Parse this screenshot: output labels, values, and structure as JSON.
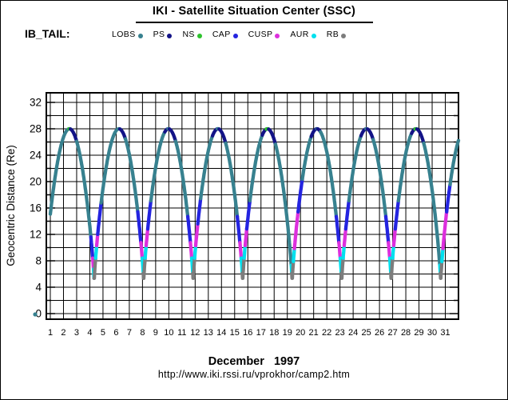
{
  "window": {
    "bg_color": "#ffffff",
    "border_color": "#000000"
  },
  "header": {
    "title": "IKI - Satellite Situation Center (SSC)"
  },
  "legend": {
    "group_label": "IB_TAIL:",
    "items": [
      {
        "label": "LOBS",
        "color": "#37818f"
      },
      {
        "label": "PS",
        "color": "#131387"
      },
      {
        "label": "NS",
        "color": "#2dc32d"
      },
      {
        "label": "CAP",
        "color": "#2424e0"
      },
      {
        "label": "CUSP",
        "color": "#dd2fdd"
      },
      {
        "label": "AUR",
        "color": "#00e0ee"
      },
      {
        "label": "RB",
        "color": "#7d7d7d"
      }
    ]
  },
  "footer": {
    "caption": "December   1997",
    "url": "http://www.iki.rssi.ru/vprokhor/camp2.htm"
  },
  "chart_data": {
    "type": "line",
    "ylabel": "Geocentric Distance (Re)",
    "xlabel": "December 1997 (day of month)",
    "y_ticks": [
      0,
      4,
      8,
      12,
      16,
      20,
      24,
      28,
      32
    ],
    "y_minor_step": 2,
    "x_ticks": [
      1,
      2,
      3,
      4,
      5,
      6,
      7,
      8,
      9,
      10,
      11,
      12,
      13,
      14,
      15,
      16,
      17,
      18,
      19,
      20,
      21,
      22,
      23,
      24,
      25,
      26,
      27,
      28,
      29,
      30,
      31
    ],
    "ylim": [
      0,
      32
    ],
    "xlim_days": [
      1,
      32
    ],
    "grid": "on",
    "orbit_model": {
      "apogee_re": 28,
      "perigee_re": 4.8,
      "period_days": 3.76,
      "first_apogee_day": 2.45,
      "shape_exponent": 0.78,
      "day_start": 1.0,
      "day_end": 32.0
    },
    "apogee_days": [
      2.45,
      6.21,
      9.97,
      13.73,
      17.49,
      21.25,
      25.01,
      28.77
    ],
    "perigee_days": [
      4.33,
      8.09,
      11.85,
      15.61,
      19.37,
      23.13,
      26.89,
      30.65
    ],
    "default_region": "LOBS",
    "color_segments": [
      {
        "from": 2.42,
        "to": 2.52,
        "region": "NS"
      },
      {
        "from": 17.38,
        "to": 17.56,
        "region": "NS"
      },
      {
        "from": 28.68,
        "to": 28.82,
        "region": "NS"
      },
      {
        "from": 2.52,
        "to": 3.0,
        "region": "PS"
      },
      {
        "from": 6.26,
        "to": 6.68,
        "region": "PS"
      },
      {
        "from": 9.68,
        "to": 9.93,
        "region": "PS"
      },
      {
        "from": 10.02,
        "to": 10.5,
        "region": "PS"
      },
      {
        "from": 13.3,
        "to": 13.68,
        "region": "PS"
      },
      {
        "from": 13.8,
        "to": 14.3,
        "region": "PS"
      },
      {
        "from": 17.08,
        "to": 17.38,
        "region": "PS"
      },
      {
        "from": 17.56,
        "to": 18.08,
        "region": "PS"
      },
      {
        "from": 20.8,
        "to": 21.22,
        "region": "PS"
      },
      {
        "from": 21.29,
        "to": 21.5,
        "region": "PS"
      },
      {
        "from": 24.58,
        "to": 24.96,
        "region": "PS"
      },
      {
        "from": 25.06,
        "to": 25.5,
        "region": "PS"
      },
      {
        "from": 28.42,
        "to": 28.68,
        "region": "PS"
      },
      {
        "from": 28.82,
        "to": 29.35,
        "region": "PS"
      },
      {
        "from": 4.08,
        "to": 4.2,
        "region": "CAP"
      },
      {
        "from": 4.2,
        "to": 4.26,
        "region": "CUSP"
      },
      {
        "from": 4.26,
        "to": 4.3,
        "region": "AUR"
      },
      {
        "from": 4.3,
        "to": 4.42,
        "region": "RB"
      },
      {
        "from": 4.42,
        "to": 4.5,
        "region": "AUR"
      },
      {
        "from": 4.5,
        "to": 4.58,
        "region": "CUSP"
      },
      {
        "from": 4.58,
        "to": 4.85,
        "region": "CAP"
      },
      {
        "from": 7.62,
        "to": 7.87,
        "region": "CAP"
      },
      {
        "from": 7.87,
        "to": 7.96,
        "region": "CUSP"
      },
      {
        "from": 7.96,
        "to": 8.04,
        "region": "AUR"
      },
      {
        "from": 8.04,
        "to": 8.18,
        "region": "RB"
      },
      {
        "from": 8.18,
        "to": 8.26,
        "region": "AUR"
      },
      {
        "from": 8.26,
        "to": 8.38,
        "region": "CUSP"
      },
      {
        "from": 8.38,
        "to": 8.62,
        "region": "CAP"
      },
      {
        "from": 11.42,
        "to": 11.63,
        "region": "CAP"
      },
      {
        "from": 11.63,
        "to": 11.72,
        "region": "CUSP"
      },
      {
        "from": 11.72,
        "to": 11.8,
        "region": "AUR"
      },
      {
        "from": 11.8,
        "to": 11.94,
        "region": "RB"
      },
      {
        "from": 11.94,
        "to": 12.02,
        "region": "AUR"
      },
      {
        "from": 12.02,
        "to": 12.18,
        "region": "CUSP"
      },
      {
        "from": 12.18,
        "to": 12.4,
        "region": "CAP"
      },
      {
        "from": 15.18,
        "to": 15.39,
        "region": "CAP"
      },
      {
        "from": 15.39,
        "to": 15.48,
        "region": "CUSP"
      },
      {
        "from": 15.48,
        "to": 15.56,
        "region": "AUR"
      },
      {
        "from": 15.56,
        "to": 15.7,
        "region": "RB"
      },
      {
        "from": 15.7,
        "to": 15.78,
        "region": "AUR"
      },
      {
        "from": 15.78,
        "to": 15.9,
        "region": "CUSP"
      },
      {
        "from": 15.9,
        "to": 16.14,
        "region": "CAP"
      },
      {
        "from": 19.28,
        "to": 19.33,
        "region": "AUR"
      },
      {
        "from": 19.33,
        "to": 19.45,
        "region": "RB"
      },
      {
        "from": 19.45,
        "to": 19.53,
        "region": "AUR"
      },
      {
        "from": 19.53,
        "to": 19.8,
        "region": "CUSP"
      },
      {
        "from": 19.8,
        "to": 20.12,
        "region": "CAP"
      },
      {
        "from": 22.7,
        "to": 22.91,
        "region": "CAP"
      },
      {
        "from": 22.91,
        "to": 23.0,
        "region": "CUSP"
      },
      {
        "from": 23.0,
        "to": 23.08,
        "region": "AUR"
      },
      {
        "from": 23.08,
        "to": 23.22,
        "region": "RB"
      },
      {
        "from": 23.22,
        "to": 23.3,
        "region": "AUR"
      },
      {
        "from": 23.3,
        "to": 23.42,
        "region": "CUSP"
      },
      {
        "from": 23.42,
        "to": 23.66,
        "region": "CAP"
      },
      {
        "from": 26.46,
        "to": 26.67,
        "region": "CAP"
      },
      {
        "from": 26.67,
        "to": 26.76,
        "region": "CUSP"
      },
      {
        "from": 26.76,
        "to": 26.84,
        "region": "AUR"
      },
      {
        "from": 26.84,
        "to": 26.98,
        "region": "RB"
      },
      {
        "from": 26.98,
        "to": 27.06,
        "region": "AUR"
      },
      {
        "from": 27.06,
        "to": 27.18,
        "region": "CUSP"
      },
      {
        "from": 27.18,
        "to": 27.42,
        "region": "CAP"
      },
      {
        "from": 30.56,
        "to": 30.61,
        "region": "AUR"
      },
      {
        "from": 30.61,
        "to": 30.73,
        "region": "RB"
      },
      {
        "from": 30.73,
        "to": 30.81,
        "region": "AUR"
      },
      {
        "from": 30.81,
        "to": 31.08,
        "region": "CUSP"
      },
      {
        "from": 31.08,
        "to": 31.35,
        "region": "CAP"
      }
    ]
  }
}
